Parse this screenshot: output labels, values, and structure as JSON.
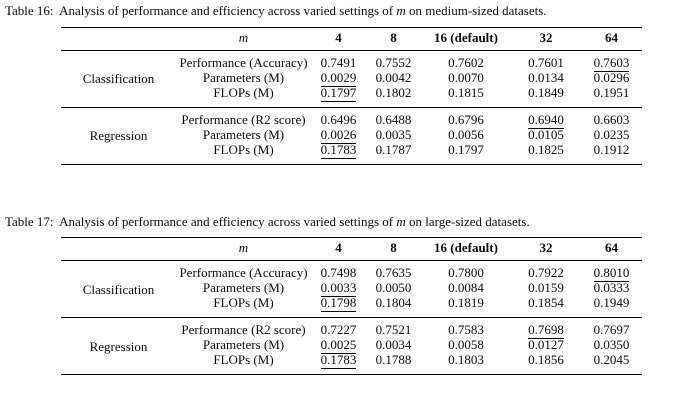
{
  "page": {
    "background_color": "#ffffff",
    "text_color": "#0b0b0b"
  },
  "tables": [
    {
      "caption": {
        "label": "Table 16:",
        "pre": " Analysis of performance and efficiency across varied settings of ",
        "m_var": "m",
        "post": " on medium-sized datasets."
      },
      "header": {
        "var": "m",
        "columns": [
          "4",
          "8",
          "16 (default)",
          "32",
          "64"
        ]
      },
      "groups": [
        {
          "label": "Classification",
          "rows": [
            {
              "metric": "Performance (Accuracy)",
              "values": [
                "0.7491",
                "0.7552",
                "0.7602",
                "0.7601",
                "0.7603"
              ],
              "underline": [
                4
              ]
            },
            {
              "metric": "Parameters (M)",
              "values": [
                "0.0029",
                "0.0042",
                "0.0070",
                "0.0134",
                "0.0296"
              ],
              "underline": [
                0
              ]
            },
            {
              "metric": "FLOPs (M)",
              "values": [
                "0.1797",
                "0.1802",
                "0.1815",
                "0.1849",
                "0.1951"
              ],
              "underline": [
                0
              ]
            }
          ]
        },
        {
          "label": "Regression",
          "rows": [
            {
              "metric": "Performance (R2 score)",
              "values": [
                "0.6496",
                "0.6488",
                "0.6796",
                "0.6940",
                "0.6603"
              ],
              "underline": [
                3
              ]
            },
            {
              "metric": "Parameters (M)",
              "values": [
                "0.0026",
                "0.0035",
                "0.0056",
                "0.0105",
                "0.0235"
              ],
              "underline": [
                0
              ]
            },
            {
              "metric": "FLOPs (M)",
              "values": [
                "0.1783",
                "0.1787",
                "0.1797",
                "0.1825",
                "0.1912"
              ],
              "underline": [
                0
              ]
            }
          ]
        }
      ]
    },
    {
      "caption": {
        "label": "Table 17:",
        "pre": " Analysis of performance and efficiency across varied settings of ",
        "m_var": "m",
        "post": " on large-sized datasets."
      },
      "header": {
        "var": "m",
        "columns": [
          "4",
          "8",
          "16 (default)",
          "32",
          "64"
        ]
      },
      "groups": [
        {
          "label": "Classification",
          "rows": [
            {
              "metric": "Performance (Accuracy)",
              "values": [
                "0.7498",
                "0.7635",
                "0.7800",
                "0.7922",
                "0.8010"
              ],
              "underline": [
                4
              ]
            },
            {
              "metric": "Parameters (M)",
              "values": [
                "0.0033",
                "0.0050",
                "0.0084",
                "0.0159",
                "0.0333"
              ],
              "underline": [
                0
              ]
            },
            {
              "metric": "FLOPs (M)",
              "values": [
                "0.1798",
                "0.1804",
                "0.1819",
                "0.1854",
                "0.1949"
              ],
              "underline": [
                0
              ]
            }
          ]
        },
        {
          "label": "Regression",
          "rows": [
            {
              "metric": "Performance (R2 score)",
              "values": [
                "0.7227",
                "0.7521",
                "0.7583",
                "0.7698",
                "0.7697"
              ],
              "underline": [
                3
              ]
            },
            {
              "metric": "Parameters (M)",
              "values": [
                "0.0025",
                "0.0034",
                "0.0058",
                "0.0127",
                "0.0350"
              ],
              "underline": [
                0
              ]
            },
            {
              "metric": "FLOPs (M)",
              "values": [
                "0.1783",
                "0.1788",
                "0.1803",
                "0.1856",
                "0.2045"
              ],
              "underline": [
                0
              ]
            }
          ]
        }
      ]
    }
  ]
}
